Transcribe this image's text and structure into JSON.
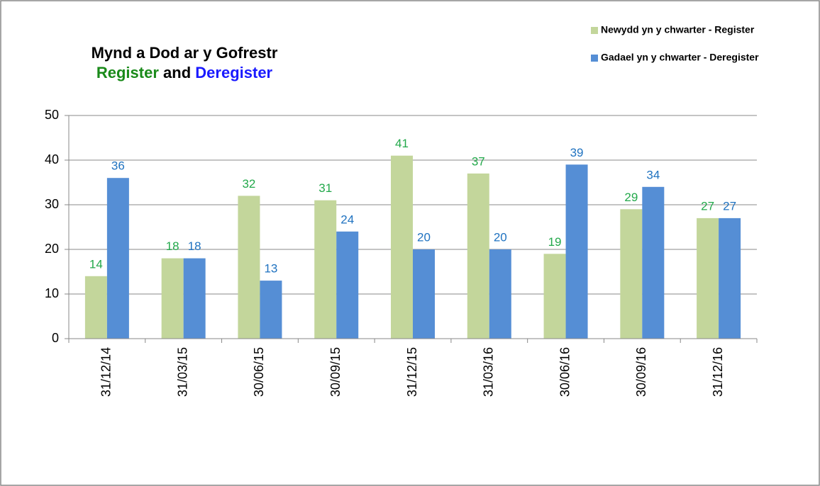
{
  "chart_data": {
    "type": "bar",
    "title": "Mynd a Dod ar y Gofrestr",
    "subtitle_parts": [
      {
        "text": "Register",
        "color": "#1a8a1a"
      },
      {
        "text": "and",
        "color": "#000000"
      },
      {
        "text": "Deregister",
        "color": "#1a1aff"
      }
    ],
    "categories": [
      "31/12/14",
      "31/03/15",
      "30/06/15",
      "30/09/15",
      "31/12/15",
      "31/03/16",
      "30/06/16",
      "30/09/16",
      "31/12/16"
    ],
    "series": [
      {
        "name": "Newydd yn y chwarter - Register",
        "color": "#c3d69b",
        "label_color": "#22a84a",
        "values": [
          14,
          18,
          32,
          31,
          41,
          37,
          19,
          29,
          27
        ]
      },
      {
        "name": "Gadael yn y chwarter - Deregister",
        "color": "#558ed5",
        "label_color": "#1f72c0",
        "values": [
          36,
          18,
          13,
          24,
          20,
          20,
          39,
          34,
          27
        ]
      }
    ],
    "ylim": [
      0,
      50
    ],
    "yticks": [
      0,
      10,
      20,
      30,
      40,
      50
    ],
    "grid": true,
    "legend": "top-right"
  }
}
